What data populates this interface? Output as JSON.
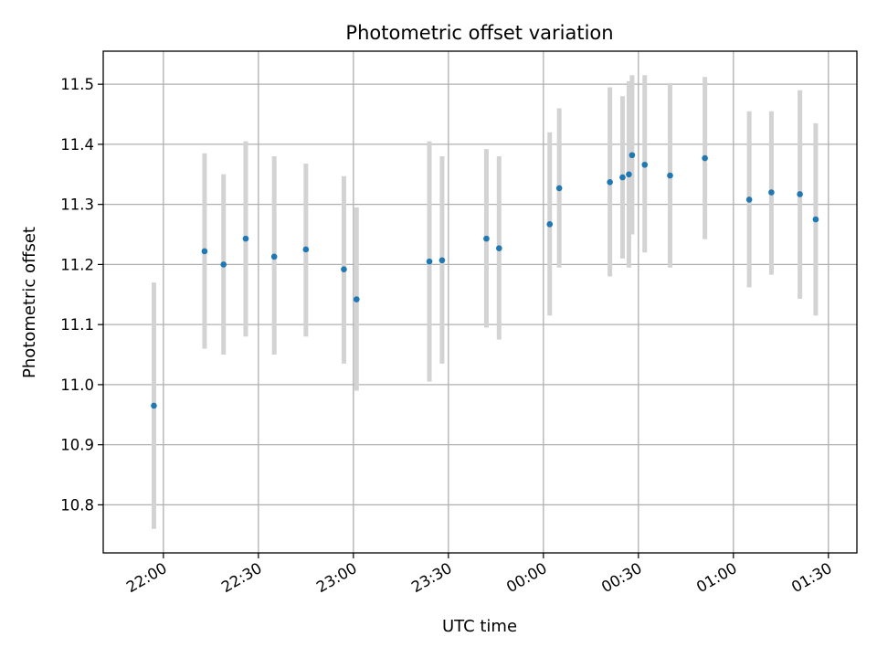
{
  "chart_data": {
    "type": "scatter",
    "title": "Photometric offset variation",
    "xlabel": "UTC time",
    "ylabel": "Photometric offset",
    "x_unit": "UTC time (HH:MM, starting evening before midnight)",
    "xlim": [
      "21:41",
      "01:39"
    ],
    "ylim": [
      10.72,
      11.555
    ],
    "grid": true,
    "x_ticks": [
      "22:00",
      "22:30",
      "23:00",
      "23:30",
      "00:00",
      "00:30",
      "01:00",
      "01:30"
    ],
    "y_ticks": [
      "10.8",
      "10.9",
      "11.0",
      "11.1",
      "11.2",
      "11.3",
      "11.4",
      "11.5"
    ],
    "colors": {
      "point": "#1f77b4",
      "errorbar": "#d3d3d3",
      "grid": "#b0b0b0"
    },
    "points": [
      {
        "x": "21:57",
        "y": 10.965,
        "err_low": 10.76,
        "err_high": 11.17
      },
      {
        "x": "22:13",
        "y": 11.222,
        "err_low": 11.06,
        "err_high": 11.385
      },
      {
        "x": "22:19",
        "y": 11.2,
        "err_low": 11.05,
        "err_high": 11.35
      },
      {
        "x": "22:26",
        "y": 11.243,
        "err_low": 11.08,
        "err_high": 11.405
      },
      {
        "x": "22:35",
        "y": 11.213,
        "err_low": 11.05,
        "err_high": 11.38
      },
      {
        "x": "22:45",
        "y": 11.225,
        "err_low": 11.08,
        "err_high": 11.368
      },
      {
        "x": "22:57",
        "y": 11.192,
        "err_low": 11.035,
        "err_high": 11.347
      },
      {
        "x": "23:01",
        "y": 11.142,
        "err_low": 10.99,
        "err_high": 11.295
      },
      {
        "x": "23:24",
        "y": 11.205,
        "err_low": 11.005,
        "err_high": 11.405
      },
      {
        "x": "23:28",
        "y": 11.207,
        "err_low": 11.035,
        "err_high": 11.38
      },
      {
        "x": "23:42",
        "y": 11.243,
        "err_low": 11.095,
        "err_high": 11.392
      },
      {
        "x": "23:46",
        "y": 11.227,
        "err_low": 11.075,
        "err_high": 11.38
      },
      {
        "x": "00:02",
        "y": 11.267,
        "err_low": 11.115,
        "err_high": 11.42
      },
      {
        "x": "00:05",
        "y": 11.327,
        "err_low": 11.195,
        "err_high": 11.46
      },
      {
        "x": "00:21",
        "y": 11.337,
        "err_low": 11.18,
        "err_high": 11.495
      },
      {
        "x": "00:25",
        "y": 11.345,
        "err_low": 11.21,
        "err_high": 11.48
      },
      {
        "x": "00:27",
        "y": 11.35,
        "err_low": 11.195,
        "err_high": 11.505
      },
      {
        "x": "00:28",
        "y": 11.382,
        "err_low": 11.25,
        "err_high": 11.515
      },
      {
        "x": "00:32",
        "y": 11.366,
        "err_low": 11.22,
        "err_high": 11.515
      },
      {
        "x": "00:40",
        "y": 11.348,
        "err_low": 11.195,
        "err_high": 11.502
      },
      {
        "x": "00:51",
        "y": 11.377,
        "err_low": 11.242,
        "err_high": 11.512
      },
      {
        "x": "01:05",
        "y": 11.308,
        "err_low": 11.162,
        "err_high": 11.455
      },
      {
        "x": "01:12",
        "y": 11.32,
        "err_low": 11.183,
        "err_high": 11.455
      },
      {
        "x": "01:21",
        "y": 11.317,
        "err_low": 11.143,
        "err_high": 11.49
      },
      {
        "x": "01:26",
        "y": 11.275,
        "err_low": 11.115,
        "err_high": 11.435
      }
    ]
  }
}
